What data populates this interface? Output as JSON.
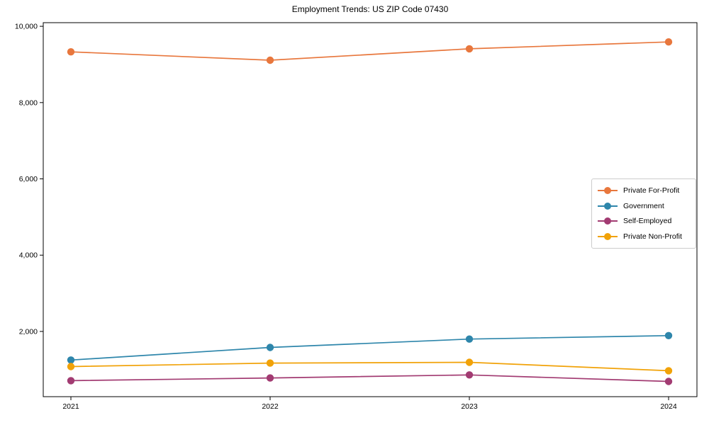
{
  "chart_data": {
    "type": "line",
    "title": "Employment Trends: US ZIP Code 07430",
    "categories": [
      "2021",
      "2022",
      "2023",
      "2024"
    ],
    "series": [
      {
        "name": "Private For-Profit",
        "color": "#e8773d",
        "values": [
          9330,
          9110,
          9410,
          9590
        ]
      },
      {
        "name": "Government",
        "color": "#2e86ab",
        "values": [
          1250,
          1580,
          1800,
          1890
        ]
      },
      {
        "name": "Self-Employed",
        "color": "#a23b72",
        "values": [
          710,
          780,
          860,
          690
        ]
      },
      {
        "name": "Private Non-Profit",
        "color": "#f1a208",
        "values": [
          1080,
          1170,
          1190,
          970
        ]
      }
    ],
    "yticks": [
      2000,
      4000,
      6000,
      8000,
      10000
    ],
    "ytick_labels": [
      "2,000",
      "4,000",
      "6,000",
      "8,000",
      "10,000"
    ],
    "ylim": [
      290,
      10095
    ],
    "xlabel": "",
    "ylabel": "",
    "grid": false,
    "legend_position": "center-right"
  }
}
